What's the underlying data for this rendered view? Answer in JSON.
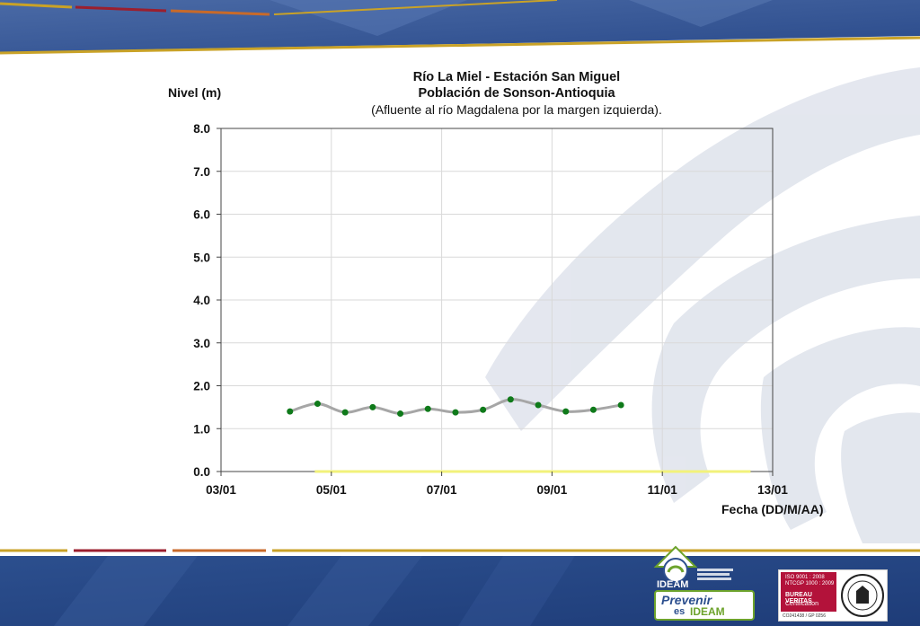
{
  "chart_data": {
    "type": "line",
    "title": "Río La Miel  - Estación San Miguel",
    "subtitle": "Población de Sonson-Antioquia",
    "subtitle2": "(Afluente al río Magdalena por la margen izquierda).",
    "ylabel": "Nivel (m)",
    "xlabel": "Fecha (DD/M/AA)",
    "ylim": [
      0,
      8
    ],
    "xlim": [
      3,
      13
    ],
    "y_ticks": [
      "0.0",
      "1.0",
      "2.0",
      "3.0",
      "4.0",
      "5.0",
      "6.0",
      "7.0",
      "8.0"
    ],
    "x_ticks": [
      "03/01",
      "05/01",
      "07/01",
      "09/01",
      "11/01",
      "13/01"
    ],
    "x_tick_values": [
      3,
      5,
      7,
      9,
      11,
      13
    ],
    "grid": true,
    "series": [
      {
        "x": [
          4.25,
          4.75,
          5.25,
          5.75,
          6.25,
          6.75,
          7.25,
          7.75,
          8.25,
          8.75,
          9.25,
          9.75,
          10.25
        ],
        "values": [
          1.4,
          1.58,
          1.38,
          1.5,
          1.35,
          1.46,
          1.38,
          1.44,
          1.68,
          1.55,
          1.4,
          1.44,
          1.55
        ],
        "color": "#a6a6a6",
        "marker_color": "#0f7a1a"
      }
    ],
    "reference_band": {
      "x": [
        4.7,
        12.6
      ],
      "y": 0,
      "color": "#f2f27a"
    }
  },
  "branding": {
    "ideam_label": "IDEAM",
    "prevenir_label": "Prevenir",
    "es_label": "es",
    "ideam_label2": "IDEAM",
    "bv_line1": "ISO 9001 : 2008",
    "bv_line2": "NTCGP 1000 : 2009",
    "bv_line3": "BUREAU VERITAS",
    "bv_line4": "Certification",
    "bv_foot": "CO241438 / GP 0256",
    "colors": {
      "banner_blue": "#2c4f8e",
      "gold": "#c9a227",
      "red": "#9b1f2e",
      "green": "#6da32c"
    }
  }
}
